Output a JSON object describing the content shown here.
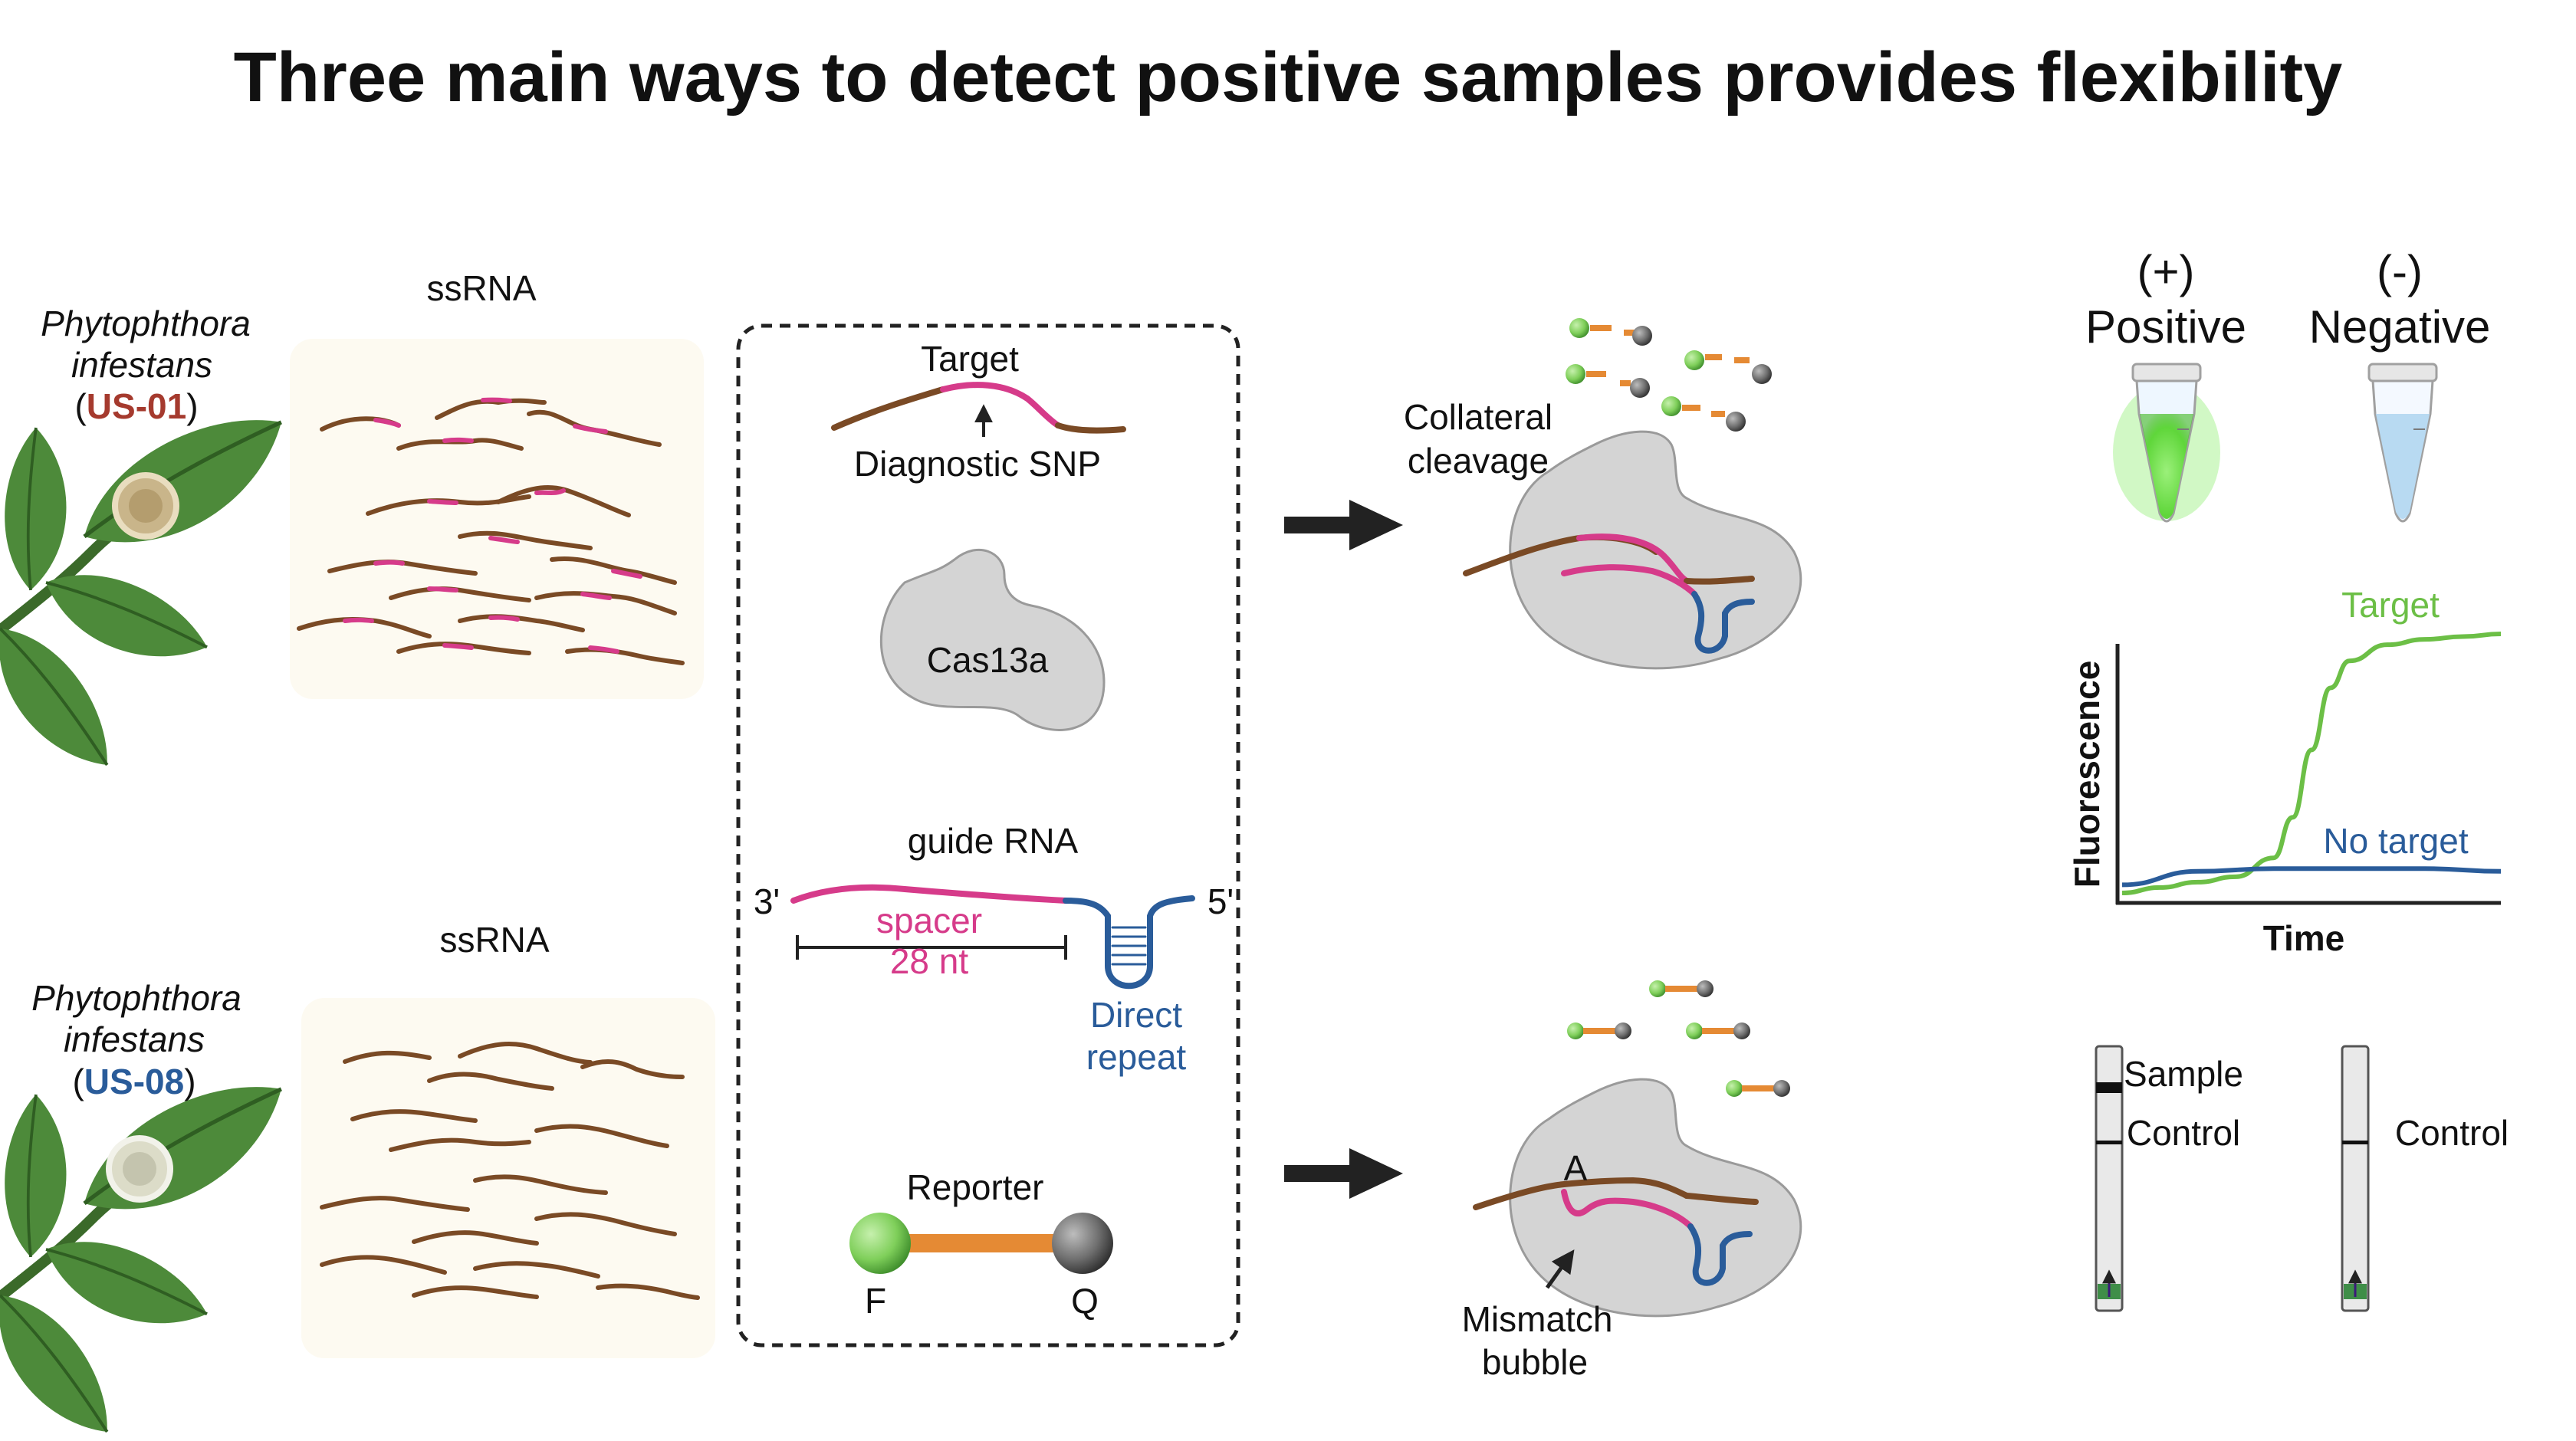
{
  "title": "Three main ways to detect positive samples provides flexibility",
  "samples": [
    {
      "organism_line1": "Phytophthora",
      "organism_line2": "infestans",
      "strain": "US-01",
      "rna_label": "ssRNA"
    },
    {
      "organism_line1": "Phytophthora",
      "organism_line2": "infestans",
      "strain": "US-08",
      "rna_label": "ssRNA"
    }
  ],
  "components": {
    "target": "Target",
    "snp": "Diagnostic SNP",
    "protein": "Cas13a",
    "guide": "guide RNA",
    "end3": "3'",
    "end5": "5'",
    "spacer": "spacer",
    "spacer_len": "28 nt",
    "direct_repeat_1": "Direct",
    "direct_repeat_2": "repeat",
    "reporter": "Reporter",
    "fluor": "F",
    "quencher": "Q"
  },
  "outcomes": {
    "collateral_1": "Collateral",
    "collateral_2": "cleavage",
    "mismatch_base": "A",
    "mismatch_1": "Mismatch",
    "mismatch_2": "bubble"
  },
  "tubes": {
    "pos_sign": "(+)",
    "pos_label": "Positive",
    "neg_sign": "(-)",
    "neg_label": "Negative"
  },
  "chart": {
    "ylabel": "Fluorescence",
    "xlabel": "Time",
    "target_label": "Target",
    "notarget_label": "No target"
  },
  "chart_data": {
    "type": "line",
    "xlabel": "Time",
    "ylabel": "Fluorescence",
    "series": [
      {
        "name": "Target",
        "x": [
          0,
          0.1,
          0.2,
          0.3,
          0.4,
          0.45,
          0.5,
          0.55,
          0.6,
          0.7,
          0.8,
          0.9,
          1.0
        ],
        "y": [
          0.02,
          0.04,
          0.06,
          0.08,
          0.15,
          0.3,
          0.55,
          0.78,
          0.88,
          0.94,
          0.96,
          0.97,
          0.98
        ]
      },
      {
        "name": "No target",
        "x": [
          0,
          0.2,
          0.4,
          0.6,
          0.8,
          1.0
        ],
        "y": [
          0.05,
          0.1,
          0.11,
          0.11,
          0.11,
          0.1
        ]
      }
    ]
  },
  "strips": {
    "sample": "Sample",
    "control": "Control",
    "control2": "Control"
  },
  "colors": {
    "rna_brown": "#7a4a25",
    "rna_pink": "#d63b8a",
    "repeat_blue": "#2a5c9a",
    "protein_gray": "#d4d4d4",
    "reporter_orange": "#e58a34",
    "fluor_green": "#7fcf5a",
    "leaf_green": "#4d8a3a"
  }
}
